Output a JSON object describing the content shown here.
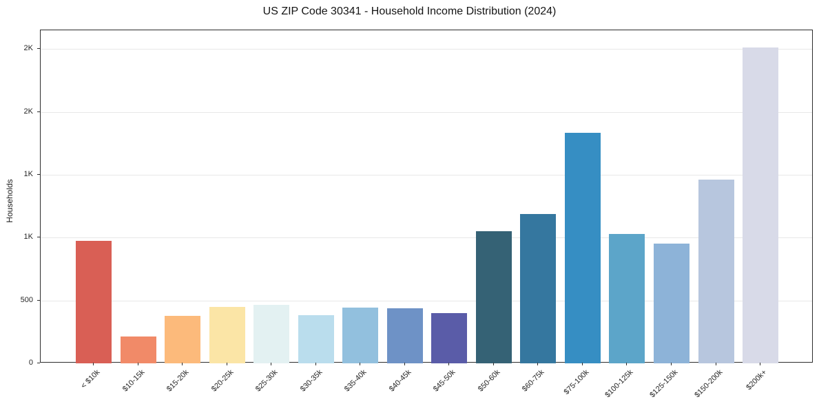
{
  "chart_data": {
    "type": "bar",
    "title": "US ZIP Code 30341 - Household Income Distribution (2024)",
    "xlabel": "",
    "ylabel": "Households",
    "categories": [
      "< $10k",
      "$10-15k",
      "$15-20k",
      "$20-25k",
      "$25-30k",
      "$30-35k",
      "$35-40k",
      "$40-45k",
      "$45-50k",
      "$50-60k",
      "$60-75k",
      "$75-100k",
      "$100-125k",
      "$125-150k",
      "$150-200k",
      "$200k+"
    ],
    "values": [
      975,
      215,
      380,
      450,
      465,
      385,
      445,
      440,
      400,
      1050,
      1190,
      1835,
      1030,
      955,
      1460,
      2515
    ],
    "bar_colors": [
      "#d95f55",
      "#f18a68",
      "#fcba7b",
      "#fbe5a6",
      "#e3f1f2",
      "#badded",
      "#92c0de",
      "#6e92c6",
      "#5a5ca8",
      "#356275",
      "#35779f",
      "#368ec3",
      "#5ca5c9",
      "#8db3d8",
      "#b7c6de",
      "#d8dae8"
    ],
    "ylim": [
      0,
      2650
    ],
    "yticks": [
      {
        "value": 0,
        "label": "0"
      },
      {
        "value": 500,
        "label": "500"
      },
      {
        "value": 1000,
        "label": "1K"
      },
      {
        "value": 1500,
        "label": "1K"
      },
      {
        "value": 2000,
        "label": "2K"
      },
      {
        "value": 2500,
        "label": "2K"
      }
    ],
    "grid": "horizontal",
    "legend": "none"
  },
  "style": {
    "grid_color": "#e8e8e8",
    "spine_color": "#2b2b2b",
    "text_color": "#262626",
    "background": "#ffffff"
  }
}
